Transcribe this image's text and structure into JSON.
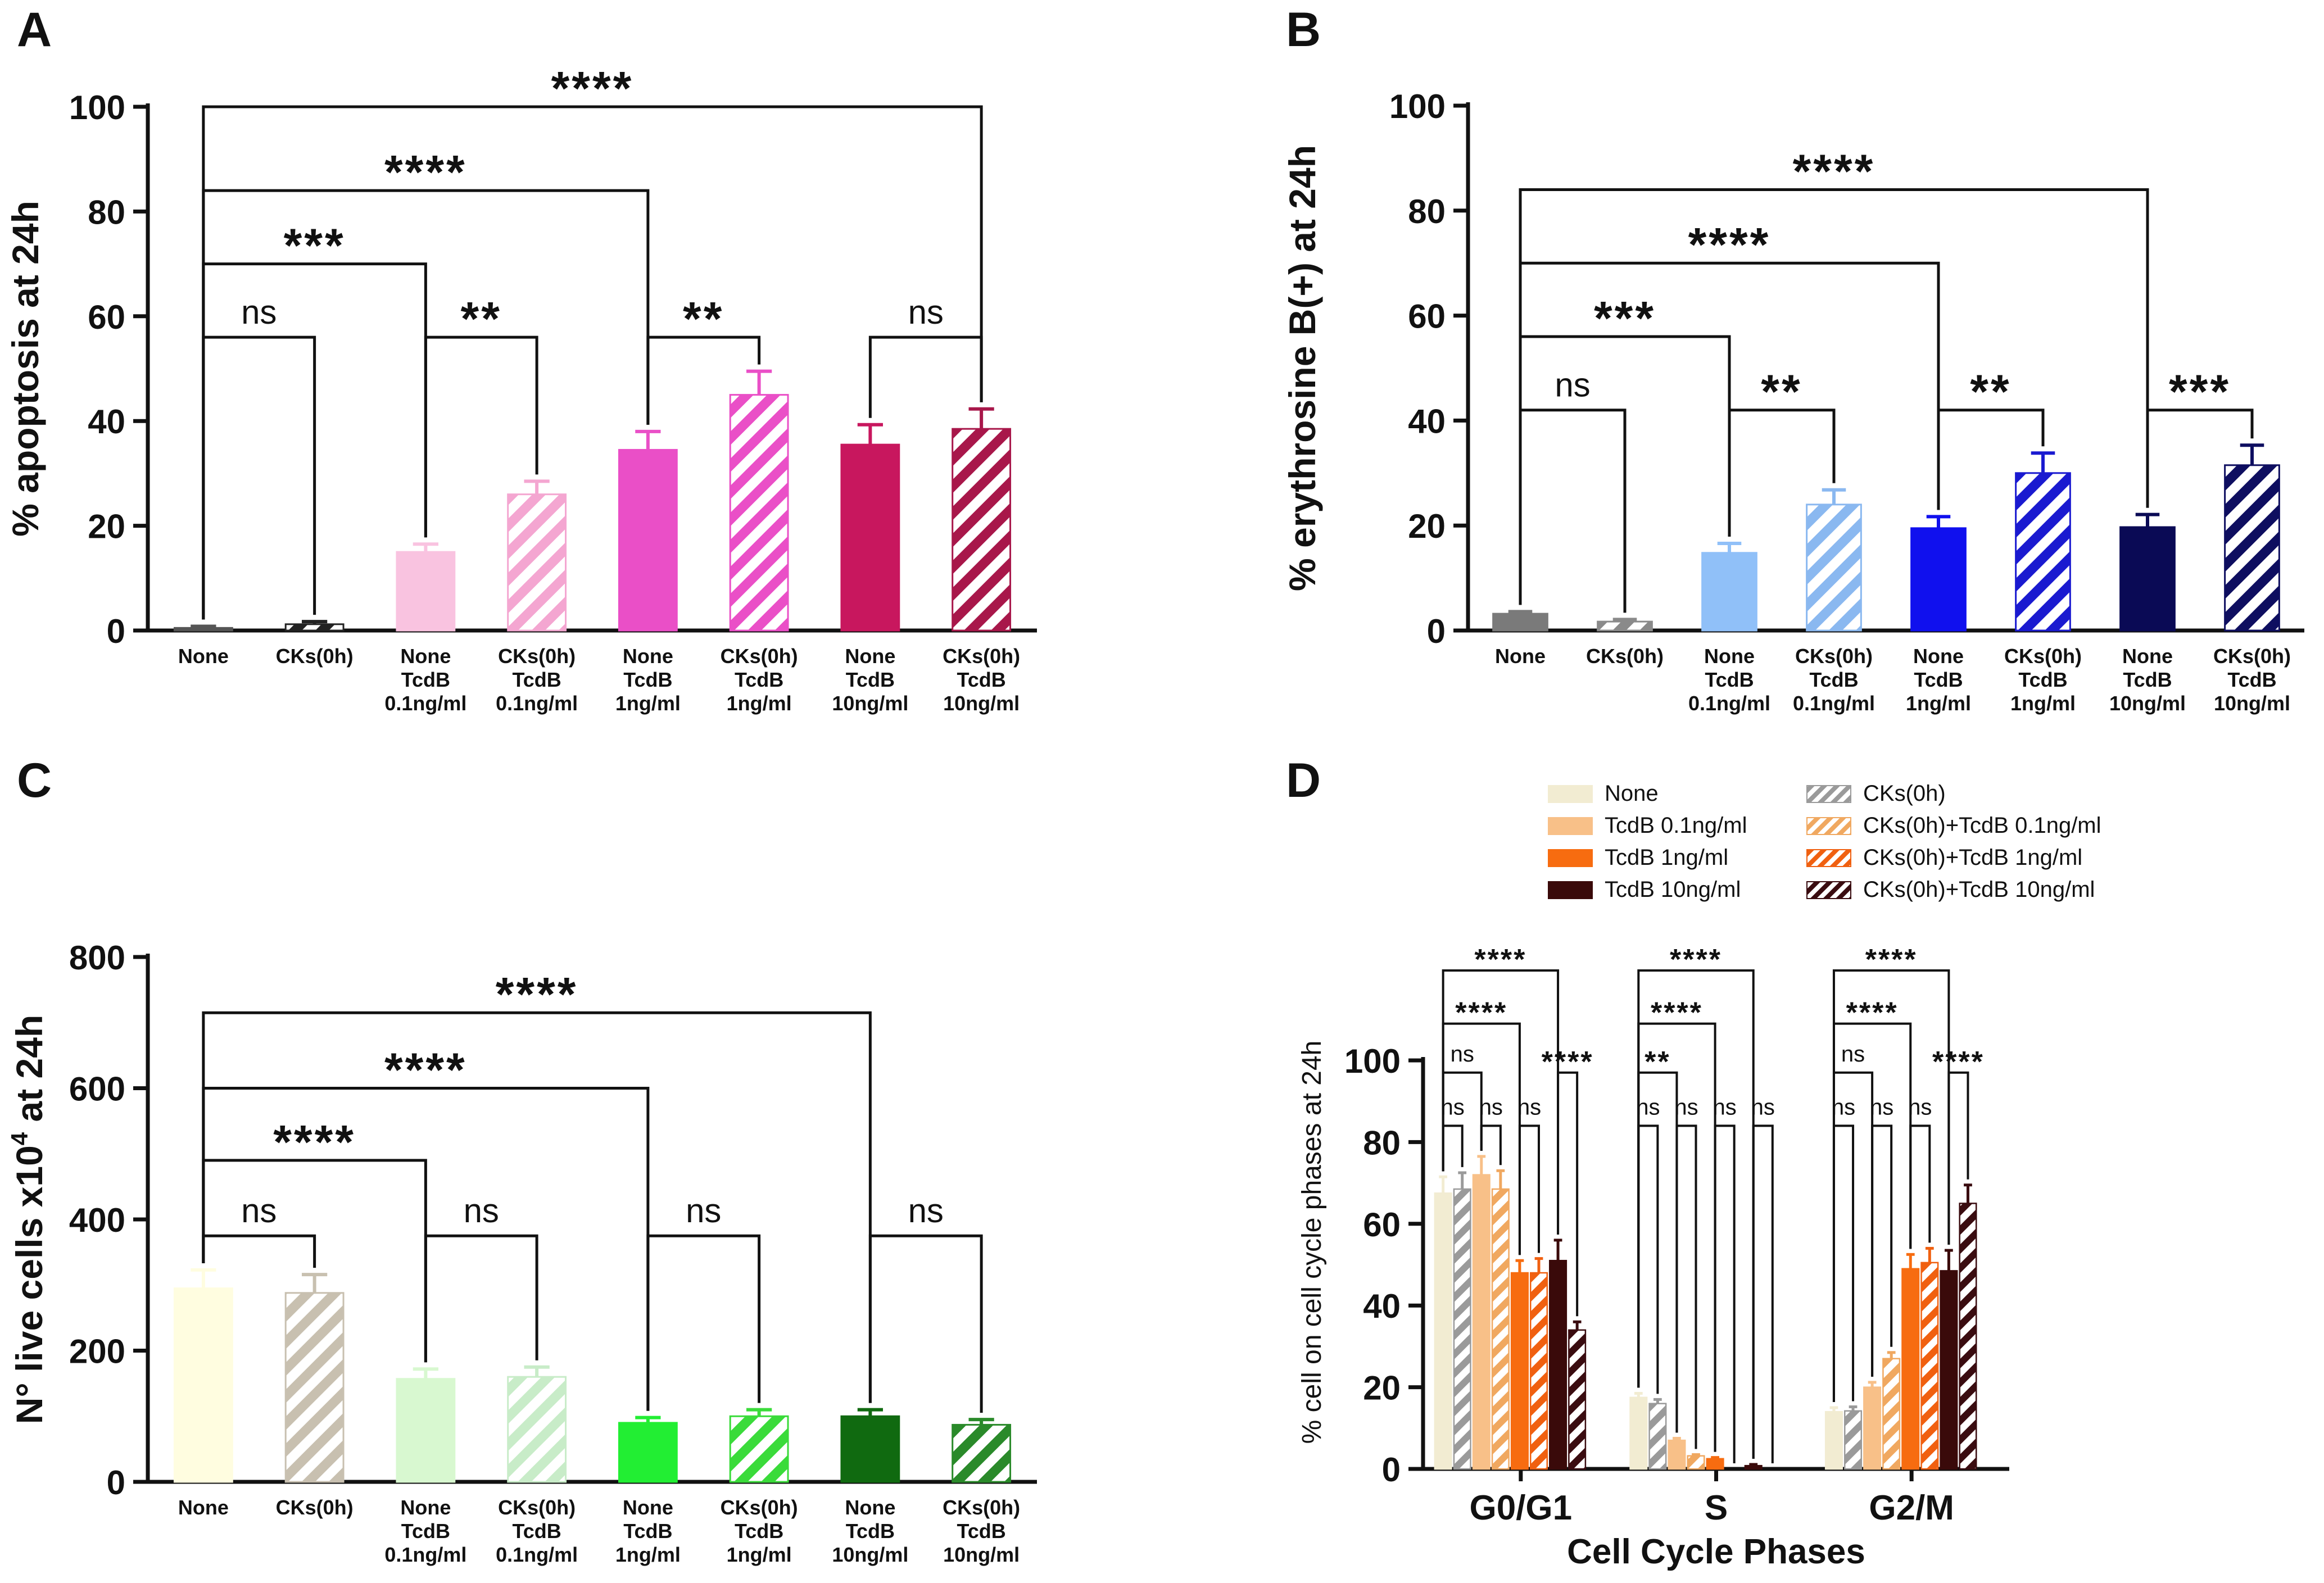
{
  "colors": {
    "axis": "#111111",
    "none_gray": "#7a7a7a",
    "ck_gray": "#8a8a8a"
  },
  "cat_labels": [
    [
      "None"
    ],
    [
      "CKs(0h)"
    ],
    [
      "None",
      "TcdB",
      "0.1ng/ml"
    ],
    [
      "CKs(0h)",
      "TcdB",
      "0.1ng/ml"
    ],
    [
      "None",
      "TcdB",
      "1ng/ml"
    ],
    [
      "CKs(0h)",
      "TcdB",
      "1ng/ml"
    ],
    [
      "None",
      "TcdB",
      "10ng/ml"
    ],
    [
      "CKs(0h)",
      "TcdB",
      "10ng/ml"
    ]
  ],
  "chart_data": [
    {
      "panel": "A",
      "type": "bar",
      "ylabel": "% apoptosis at 24h",
      "ylim": [
        0,
        100
      ],
      "yticks": [
        0,
        20,
        40,
        60,
        80,
        100
      ],
      "values": [
        0.5,
        1.2,
        15,
        26,
        34.5,
        45,
        35.5,
        38.5
      ],
      "errors": [
        0.3,
        0.5,
        1.5,
        2.5,
        3.5,
        4.5,
        3.8,
        3.8
      ],
      "colors": [
        "#555555",
        "#222222",
        "#f9c3e0",
        "#f4a6d1",
        "#ea4fc7",
        "#ea4fc7",
        "#c8175e",
        "#a8174a"
      ],
      "hatched": [
        false,
        true,
        false,
        true,
        false,
        true,
        false,
        true
      ],
      "brackets": [
        {
          "from": 0,
          "to": 7,
          "level": 100,
          "label": "****"
        },
        {
          "from": 0,
          "to": 4,
          "level": 84,
          "label": "****"
        },
        {
          "from": 0,
          "to": 2,
          "level": 70,
          "label": "***"
        },
        {
          "from": 0,
          "to": 1,
          "level": 56,
          "label": "ns"
        },
        {
          "from": 2,
          "to": 3,
          "level": 56,
          "label": "**"
        },
        {
          "from": 4,
          "to": 5,
          "level": 56,
          "label": "**"
        },
        {
          "from": 6,
          "to": 7,
          "level": 56,
          "label": "ns"
        }
      ]
    },
    {
      "panel": "B",
      "type": "bar",
      "ylabel": "% erythrosine B(+) at 24h",
      "ylim": [
        0,
        100
      ],
      "yticks": [
        0,
        20,
        40,
        60,
        80,
        100
      ],
      "values": [
        3.2,
        1.7,
        14.8,
        24,
        19.5,
        30,
        19.7,
        31.5
      ],
      "errors": [
        0.4,
        0.4,
        1.8,
        2.8,
        2.2,
        3.8,
        2.4,
        3.8
      ],
      "colors": [
        "#7a7a7a",
        "#8a8a8a",
        "#90c0f8",
        "#8ab8f0",
        "#1010ee",
        "#1a1ad0",
        "#0a0a55",
        "#0e0e60"
      ],
      "hatched": [
        false,
        true,
        false,
        true,
        false,
        true,
        false,
        true
      ],
      "brackets": [
        {
          "from": 0,
          "to": 6,
          "level": 84,
          "label": "****"
        },
        {
          "from": 0,
          "to": 4,
          "level": 70,
          "label": "****"
        },
        {
          "from": 0,
          "to": 2,
          "level": 56,
          "label": "***"
        },
        {
          "from": 0,
          "to": 1,
          "level": 42,
          "label": "ns"
        },
        {
          "from": 2,
          "to": 3,
          "level": 42,
          "label": "**"
        },
        {
          "from": 4,
          "to": 5,
          "level": 42,
          "label": "**"
        },
        {
          "from": 6,
          "to": 7,
          "level": 42,
          "label": "***"
        }
      ]
    },
    {
      "panel": "C",
      "type": "bar",
      "ylabel_main": "N° live cells x10",
      "ylabel_sup": "4",
      "ylabel_tail": " at 24h",
      "ylim": [
        0,
        800
      ],
      "yticks": [
        0,
        200,
        400,
        600,
        800
      ],
      "values": [
        295,
        288,
        157,
        160,
        90,
        100,
        100,
        87
      ],
      "errors": [
        28,
        28,
        15,
        15,
        8,
        10,
        10,
        8
      ],
      "colors": [
        "#fffde0",
        "#c8c0b0",
        "#d8f8d0",
        "#c8ecc8",
        "#22ee33",
        "#3adb3a",
        "#106a10",
        "#2a8a2a"
      ],
      "hatched": [
        false,
        true,
        false,
        true,
        false,
        true,
        false,
        true
      ],
      "brackets": [
        {
          "from": 0,
          "to": 6,
          "level": 715,
          "label": "****"
        },
        {
          "from": 0,
          "to": 4,
          "level": 600,
          "label": "****"
        },
        {
          "from": 0,
          "to": 2,
          "level": 490,
          "label": "****"
        },
        {
          "from": 0,
          "to": 1,
          "level": 375,
          "label": "ns"
        },
        {
          "from": 2,
          "to": 3,
          "level": 375,
          "label": "ns"
        },
        {
          "from": 4,
          "to": 5,
          "level": 375,
          "label": "ns"
        },
        {
          "from": 6,
          "to": 7,
          "level": 375,
          "label": "ns"
        }
      ]
    },
    {
      "panel": "D",
      "type": "bar",
      "title_x": "Cell Cycle Phases",
      "ylabel": "% cell on cell cycle phases at  24h",
      "ylim": [
        0,
        100
      ],
      "yticks": [
        0,
        20,
        40,
        60,
        80,
        100
      ],
      "categories": [
        "G0/G1",
        "S",
        "G2/M"
      ],
      "series": [
        {
          "name": "None",
          "color": "#f2ecd2",
          "hatched": false,
          "values": [
            67.5,
            17.5,
            14
          ],
          "errors": [
            4,
            1,
            1
          ]
        },
        {
          "name": "CKs(0h)",
          "color": "#9a9a9a",
          "hatched": true,
          "values": [
            68.5,
            16,
            14.2
          ],
          "errors": [
            4,
            1,
            1
          ]
        },
        {
          "name": "TcdB 0.1ng/ml",
          "color": "#f8c088",
          "hatched": false,
          "values": [
            72,
            7,
            20
          ],
          "errors": [
            4.5,
            0.5,
            1.2
          ]
        },
        {
          "name": "CKs(0h)+TcdB 0.1ng/ml",
          "color": "#f0a860",
          "hatched": true,
          "values": [
            68.5,
            3.2,
            27
          ],
          "errors": [
            4.5,
            0.3,
            1.5
          ]
        },
        {
          "name": "TcdB 1ng/ml",
          "color": "#f76c10",
          "hatched": false,
          "values": [
            48,
            2.5,
            49
          ],
          "errors": [
            3,
            0.3,
            3.5
          ]
        },
        {
          "name": "CKs(0h)+TcdB 1ng/ml",
          "color": "#f06010",
          "hatched": true,
          "values": [
            48,
            0,
            50.5
          ],
          "errors": [
            3.5,
            0,
            3.5
          ]
        },
        {
          "name": "TcdB 10ng/ml",
          "color": "#3a0a0a",
          "hatched": false,
          "values": [
            51,
            0.8,
            48.5
          ],
          "errors": [
            5,
            0.3,
            5
          ]
        },
        {
          "name": "CKs(0h)+TcdB 10ng/ml",
          "color": "#3a0c10",
          "hatched": true,
          "values": [
            34,
            0,
            65
          ],
          "errors": [
            2,
            0,
            4.5
          ]
        }
      ],
      "brackets": [
        {
          "group": 0,
          "from": 0,
          "to": 6,
          "level": 122,
          "label": "****"
        },
        {
          "group": 0,
          "from": 0,
          "to": 4,
          "level": 109,
          "label": "****"
        },
        {
          "group": 0,
          "from": 0,
          "to": 2,
          "level": 97,
          "label": "ns"
        },
        {
          "group": 0,
          "from": 0,
          "to": 1,
          "level": 84,
          "label": "ns"
        },
        {
          "group": 0,
          "from": 2,
          "to": 3,
          "level": 84,
          "label": "ns"
        },
        {
          "group": 0,
          "from": 4,
          "to": 5,
          "level": 84,
          "label": "ns"
        },
        {
          "group": 0,
          "from": 6,
          "to": 7,
          "level": 97,
          "label": "****"
        },
        {
          "group": 1,
          "from": 0,
          "to": 6,
          "level": 122,
          "label": "****"
        },
        {
          "group": 1,
          "from": 0,
          "to": 4,
          "level": 109,
          "label": "****"
        },
        {
          "group": 1,
          "from": 0,
          "to": 2,
          "level": 97,
          "label": "**"
        },
        {
          "group": 1,
          "from": 0,
          "to": 1,
          "level": 84,
          "label": "ns"
        },
        {
          "group": 1,
          "from": 2,
          "to": 3,
          "level": 84,
          "label": "ns"
        },
        {
          "group": 1,
          "from": 4,
          "to": 5,
          "level": 84,
          "label": "ns"
        },
        {
          "group": 1,
          "from": 6,
          "to": 7,
          "level": 84,
          "label": "ns"
        },
        {
          "group": 2,
          "from": 0,
          "to": 6,
          "level": 122,
          "label": "****"
        },
        {
          "group": 2,
          "from": 0,
          "to": 4,
          "level": 109,
          "label": "****"
        },
        {
          "group": 2,
          "from": 0,
          "to": 2,
          "level": 97,
          "label": "ns"
        },
        {
          "group": 2,
          "from": 0,
          "to": 1,
          "level": 84,
          "label": "ns"
        },
        {
          "group": 2,
          "from": 2,
          "to": 3,
          "level": 84,
          "label": "ns"
        },
        {
          "group": 2,
          "from": 4,
          "to": 5,
          "level": 84,
          "label": "ns"
        },
        {
          "group": 2,
          "from": 6,
          "to": 7,
          "level": 97,
          "label": "****"
        }
      ],
      "legend_order": [
        0,
        2,
        4,
        6,
        1,
        3,
        5,
        7
      ]
    }
  ]
}
